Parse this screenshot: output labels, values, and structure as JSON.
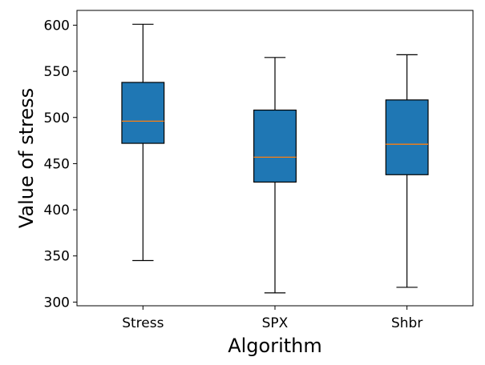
{
  "chart_data": {
    "type": "boxplot",
    "title": "",
    "xlabel": "Algorithm",
    "ylabel": "Value of stress",
    "categories": [
      "Stress",
      "SPX",
      "Shbr"
    ],
    "boxes": [
      {
        "name": "Stress",
        "whisker_low": 345,
        "q1": 472,
        "median": 496,
        "q3": 538,
        "whisker_high": 601
      },
      {
        "name": "SPX",
        "whisker_low": 310,
        "q1": 430,
        "median": 457,
        "q3": 508,
        "whisker_high": 565
      },
      {
        "name": "Shbr",
        "whisker_low": 316,
        "q1": 438,
        "median": 471,
        "q3": 519,
        "whisker_high": 568
      }
    ],
    "ylim": [
      296,
      616
    ],
    "yticks": [
      300,
      350,
      400,
      450,
      500,
      550,
      600
    ],
    "ytick_labels": [
      "300",
      "350",
      "400",
      "450",
      "500",
      "550",
      "600"
    ],
    "grid": false,
    "colors": {
      "box_fill": "#1f77b4",
      "median": "#ff7f0e",
      "line": "#000000"
    }
  }
}
